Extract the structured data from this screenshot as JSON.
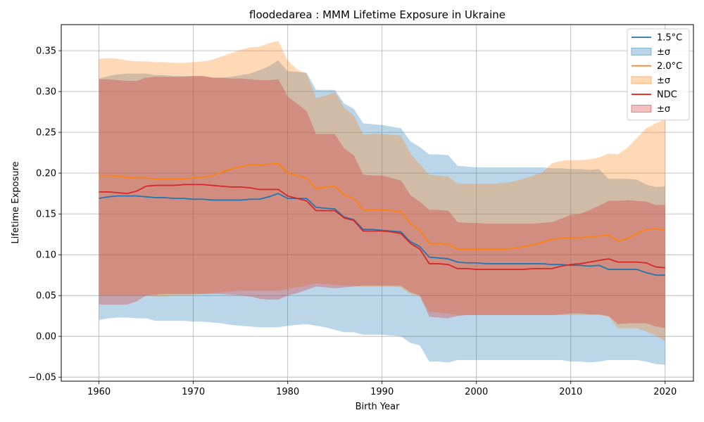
{
  "chart_data": {
    "type": "line",
    "title": "floodedarea : MMM Lifetime Exposure in Ukraine",
    "xlabel": "Birth Year",
    "ylabel": "Lifetime Exposure",
    "xlim": [
      1956,
      2023
    ],
    "ylim": [
      -0.055,
      0.382
    ],
    "xticks": [
      1960,
      1970,
      1980,
      1990,
      2000,
      2010,
      2020
    ],
    "xtick_labels": [
      "1960",
      "1970",
      "1980",
      "1990",
      "2000",
      "2010",
      "2020"
    ],
    "yticks": [
      -0.05,
      0.0,
      0.05,
      0.1,
      0.15,
      0.2,
      0.25,
      0.3,
      0.35
    ],
    "ytick_labels": [
      "−0.05",
      "0.00",
      "0.05",
      "0.10",
      "0.15",
      "0.20",
      "0.25",
      "0.30",
      "0.35"
    ],
    "grid": true,
    "legend_position": "top-right",
    "x": [
      1960,
      1961,
      1962,
      1963,
      1964,
      1965,
      1966,
      1967,
      1968,
      1969,
      1970,
      1971,
      1972,
      1973,
      1974,
      1975,
      1976,
      1977,
      1978,
      1979,
      1980,
      1981,
      1982,
      1983,
      1984,
      1985,
      1986,
      1987,
      1988,
      1989,
      1990,
      1991,
      1992,
      1993,
      1994,
      1995,
      1996,
      1997,
      1998,
      1999,
      2000,
      2001,
      2002,
      2003,
      2004,
      2005,
      2006,
      2007,
      2008,
      2009,
      2010,
      2011,
      2012,
      2013,
      2014,
      2015,
      2016,
      2017,
      2018,
      2019,
      2020
    ],
    "series": [
      {
        "name": "1.5°C",
        "band_label": "±σ",
        "color": "#1f77b4",
        "band_color": "#1f77b4",
        "band_alpha": 0.3,
        "mean": [
          0.169,
          0.171,
          0.172,
          0.172,
          0.172,
          0.171,
          0.17,
          0.17,
          0.169,
          0.169,
          0.168,
          0.168,
          0.167,
          0.167,
          0.167,
          0.167,
          0.168,
          0.168,
          0.171,
          0.175,
          0.169,
          0.169,
          0.169,
          0.158,
          0.157,
          0.156,
          0.146,
          0.143,
          0.131,
          0.131,
          0.13,
          0.129,
          0.128,
          0.116,
          0.11,
          0.097,
          0.096,
          0.095,
          0.091,
          0.09,
          0.09,
          0.089,
          0.089,
          0.089,
          0.089,
          0.089,
          0.089,
          0.089,
          0.088,
          0.088,
          0.087,
          0.087,
          0.086,
          0.087,
          0.082,
          0.082,
          0.082,
          0.082,
          0.078,
          0.075,
          0.075
        ],
        "upper": [
          0.316,
          0.319,
          0.321,
          0.322,
          0.322,
          0.322,
          0.32,
          0.32,
          0.319,
          0.319,
          0.319,
          0.319,
          0.317,
          0.317,
          0.318,
          0.32,
          0.322,
          0.326,
          0.331,
          0.338,
          0.325,
          0.324,
          0.323,
          0.302,
          0.302,
          0.302,
          0.285,
          0.279,
          0.261,
          0.26,
          0.259,
          0.257,
          0.255,
          0.239,
          0.232,
          0.223,
          0.223,
          0.222,
          0.209,
          0.208,
          0.207,
          0.207,
          0.207,
          0.207,
          0.207,
          0.207,
          0.207,
          0.207,
          0.206,
          0.206,
          0.205,
          0.205,
          0.204,
          0.205,
          0.193,
          0.193,
          0.193,
          0.192,
          0.186,
          0.183,
          0.184
        ],
        "lower": [
          0.02,
          0.022,
          0.023,
          0.023,
          0.022,
          0.022,
          0.019,
          0.019,
          0.019,
          0.019,
          0.018,
          0.018,
          0.017,
          0.016,
          0.014,
          0.013,
          0.012,
          0.011,
          0.011,
          0.011,
          0.013,
          0.014,
          0.015,
          0.013,
          0.011,
          0.008,
          0.005,
          0.005,
          0.002,
          0.002,
          0.002,
          0.001,
          0.0,
          -0.008,
          -0.011,
          -0.031,
          -0.031,
          -0.032,
          -0.029,
          -0.029,
          -0.029,
          -0.029,
          -0.029,
          -0.029,
          -0.029,
          -0.029,
          -0.029,
          -0.029,
          -0.029,
          -0.029,
          -0.031,
          -0.031,
          -0.032,
          -0.031,
          -0.029,
          -0.029,
          -0.029,
          -0.029,
          -0.031,
          -0.034,
          -0.035
        ]
      },
      {
        "name": "2.0°C",
        "band_label": "±σ",
        "color": "#ff7f0e",
        "band_color": "#ff7f0e",
        "band_alpha": 0.3,
        "mean": [
          0.197,
          0.197,
          0.196,
          0.195,
          0.194,
          0.194,
          0.193,
          0.193,
          0.193,
          0.193,
          0.194,
          0.195,
          0.197,
          0.201,
          0.205,
          0.208,
          0.21,
          0.21,
          0.211,
          0.212,
          0.2,
          0.197,
          0.194,
          0.181,
          0.183,
          0.184,
          0.173,
          0.169,
          0.155,
          0.155,
          0.155,
          0.154,
          0.153,
          0.138,
          0.13,
          0.114,
          0.114,
          0.113,
          0.107,
          0.107,
          0.107,
          0.107,
          0.107,
          0.107,
          0.108,
          0.11,
          0.112,
          0.115,
          0.119,
          0.12,
          0.121,
          0.121,
          0.122,
          0.123,
          0.124,
          0.117,
          0.12,
          0.126,
          0.131,
          0.132,
          0.13
        ],
        "upper": [
          0.34,
          0.341,
          0.34,
          0.338,
          0.337,
          0.337,
          0.336,
          0.336,
          0.335,
          0.335,
          0.336,
          0.337,
          0.339,
          0.343,
          0.347,
          0.351,
          0.354,
          0.355,
          0.359,
          0.362,
          0.338,
          0.327,
          0.322,
          0.292,
          0.295,
          0.299,
          0.28,
          0.271,
          0.247,
          0.248,
          0.248,
          0.247,
          0.246,
          0.224,
          0.211,
          0.198,
          0.197,
          0.196,
          0.187,
          0.187,
          0.187,
          0.187,
          0.187,
          0.188,
          0.19,
          0.193,
          0.197,
          0.201,
          0.212,
          0.215,
          0.216,
          0.216,
          0.217,
          0.219,
          0.224,
          0.223,
          0.231,
          0.243,
          0.255,
          0.261,
          0.266
        ],
        "lower": [
          0.05,
          0.05,
          0.05,
          0.05,
          0.05,
          0.05,
          0.049,
          0.049,
          0.05,
          0.05,
          0.051,
          0.052,
          0.053,
          0.054,
          0.055,
          0.056,
          0.056,
          0.056,
          0.056,
          0.056,
          0.058,
          0.06,
          0.062,
          0.065,
          0.064,
          0.063,
          0.062,
          0.062,
          0.061,
          0.061,
          0.061,
          0.061,
          0.06,
          0.052,
          0.049,
          0.03,
          0.029,
          0.028,
          0.026,
          0.026,
          0.026,
          0.026,
          0.026,
          0.026,
          0.026,
          0.026,
          0.026,
          0.026,
          0.026,
          0.026,
          0.026,
          0.026,
          0.026,
          0.026,
          0.024,
          0.01,
          0.01,
          0.01,
          0.006,
          0.001,
          -0.006
        ]
      },
      {
        "name": "NDC",
        "band_label": "±σ",
        "color": "#d62728",
        "band_color": "#d62728",
        "band_alpha": 0.3,
        "mean": [
          0.177,
          0.177,
          0.176,
          0.175,
          0.178,
          0.184,
          0.185,
          0.185,
          0.185,
          0.186,
          0.186,
          0.186,
          0.185,
          0.184,
          0.183,
          0.183,
          0.182,
          0.18,
          0.18,
          0.18,
          0.172,
          0.169,
          0.166,
          0.154,
          0.154,
          0.154,
          0.145,
          0.142,
          0.129,
          0.129,
          0.129,
          0.128,
          0.126,
          0.114,
          0.107,
          0.089,
          0.089,
          0.088,
          0.083,
          0.083,
          0.082,
          0.082,
          0.082,
          0.082,
          0.082,
          0.082,
          0.083,
          0.083,
          0.083,
          0.086,
          0.088,
          0.089,
          0.091,
          0.093,
          0.095,
          0.091,
          0.091,
          0.091,
          0.09,
          0.085,
          0.084
        ],
        "upper": [
          0.315,
          0.315,
          0.314,
          0.313,
          0.313,
          0.317,
          0.318,
          0.318,
          0.318,
          0.318,
          0.319,
          0.319,
          0.317,
          0.317,
          0.316,
          0.316,
          0.315,
          0.314,
          0.314,
          0.315,
          0.294,
          0.285,
          0.276,
          0.248,
          0.248,
          0.248,
          0.23,
          0.222,
          0.198,
          0.197,
          0.197,
          0.194,
          0.191,
          0.173,
          0.165,
          0.155,
          0.155,
          0.154,
          0.14,
          0.139,
          0.139,
          0.138,
          0.138,
          0.138,
          0.138,
          0.138,
          0.138,
          0.139,
          0.14,
          0.144,
          0.149,
          0.15,
          0.155,
          0.16,
          0.166,
          0.166,
          0.167,
          0.166,
          0.165,
          0.161,
          0.161
        ],
        "lower": [
          0.039,
          0.039,
          0.039,
          0.039,
          0.043,
          0.05,
          0.051,
          0.052,
          0.052,
          0.052,
          0.052,
          0.052,
          0.052,
          0.052,
          0.051,
          0.05,
          0.049,
          0.046,
          0.045,
          0.045,
          0.05,
          0.053,
          0.057,
          0.061,
          0.06,
          0.059,
          0.06,
          0.061,
          0.062,
          0.062,
          0.062,
          0.062,
          0.062,
          0.054,
          0.05,
          0.024,
          0.023,
          0.022,
          0.025,
          0.026,
          0.026,
          0.026,
          0.026,
          0.026,
          0.026,
          0.026,
          0.026,
          0.026,
          0.026,
          0.027,
          0.028,
          0.028,
          0.027,
          0.027,
          0.025,
          0.015,
          0.016,
          0.016,
          0.016,
          0.012,
          0.01
        ]
      }
    ]
  }
}
